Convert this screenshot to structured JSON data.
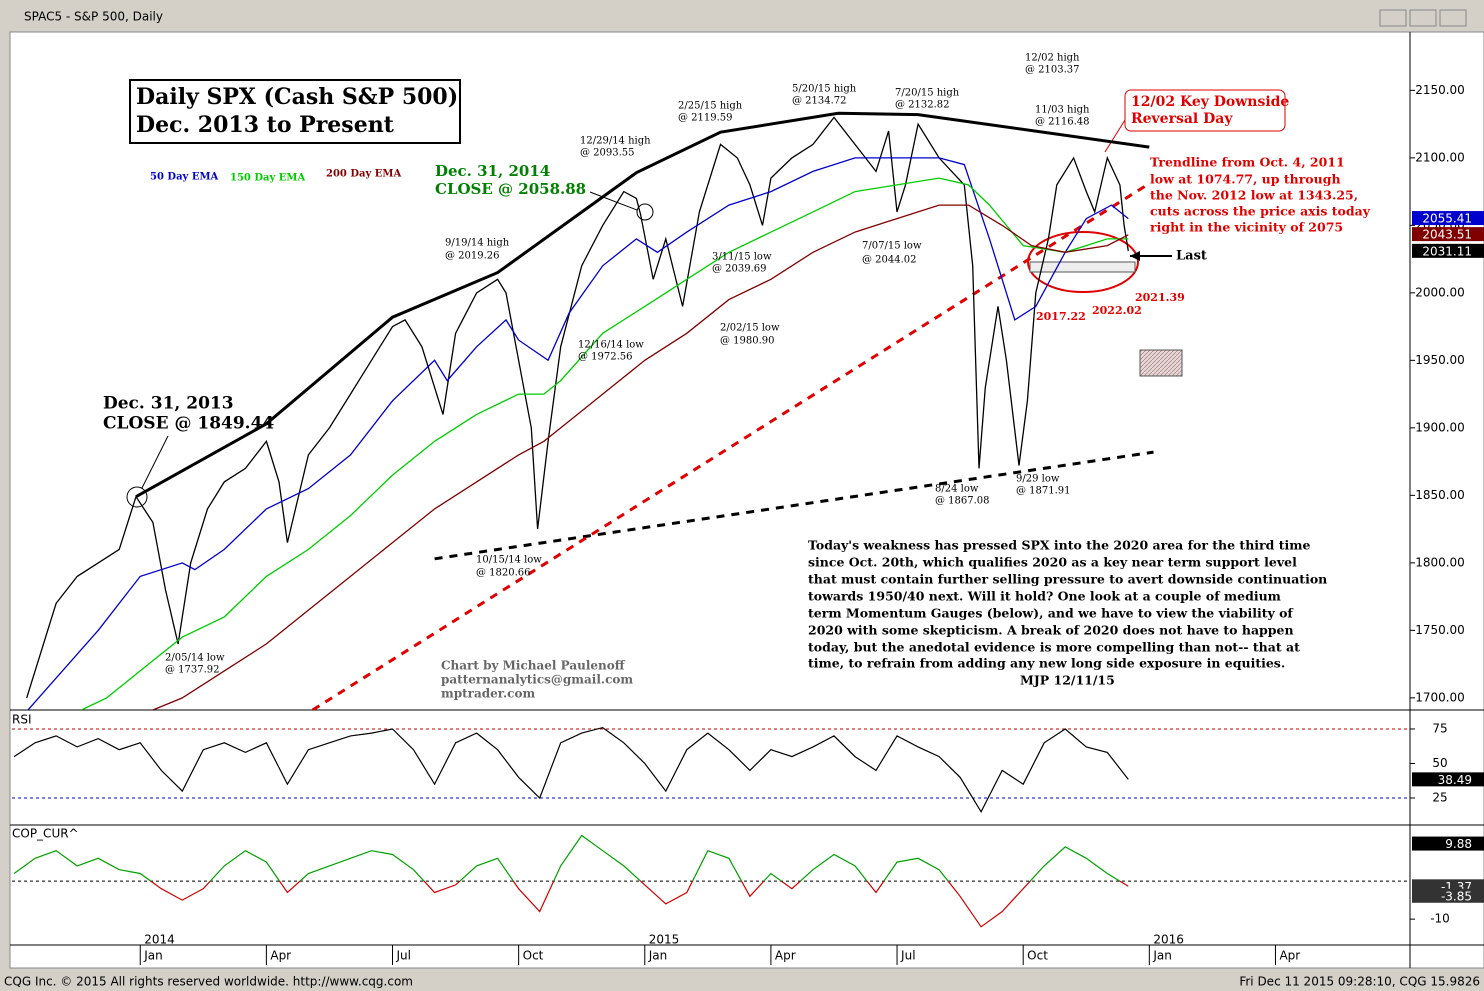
{
  "window": {
    "title": "SPAC5 - S&P 500, Daily",
    "footer_left": "CQG Inc. © 2015 All rights reserved worldwide. http://www.cqg.com",
    "footer_right": "Fri Dec 11 2015 09:28:10, CQG 15.9826"
  },
  "chart_data": [
    {
      "type": "line",
      "title_lines": [
        "Daily SPX (Cash S&P 500)",
        "Dec. 2013 to Present"
      ],
      "xlim": [
        -3.05,
        30.2
      ],
      "ylim": [
        1691,
        2191
      ],
      "yticks": [
        {
          "value": 1700,
          "label": "1700.00"
        },
        {
          "value": 1750,
          "label": "1750.00"
        },
        {
          "value": 1800,
          "label": "1800.00"
        },
        {
          "value": 1850,
          "label": "1850.00"
        },
        {
          "value": 1900,
          "label": "1900.00"
        },
        {
          "value": 1950,
          "label": "1950.00"
        },
        {
          "value": 2000,
          "label": "2000.00"
        },
        {
          "value": 2050,
          "label": "2050.00"
        },
        {
          "value": 2100,
          "label": "2100.00"
        },
        {
          "value": 2150,
          "label": "2150.00"
        }
      ],
      "series": [
        {
          "name": "S&P 500",
          "color": "#000000",
          "x": [
            -2.7,
            -2.3,
            -2,
            -1.5,
            -1,
            -0.5,
            -0.1,
            0.3,
            0.6,
            0.9,
            1.2,
            1.6,
            2,
            2.5,
            3,
            3.3,
            3.5,
            4,
            4.5,
            5,
            5.5,
            6,
            6.3,
            6.7,
            7,
            7.2,
            7.5,
            8,
            8.5,
            8.7,
            9,
            9.3,
            9.45,
            9.7,
            10,
            10.5,
            11,
            11.5,
            11.8,
            11.9,
            12.2,
            12.5,
            12.9,
            13.3,
            13.8,
            14.2,
            14.5,
            14.8,
            15,
            15.5,
            16,
            16.5,
            17,
            17.5,
            17.8,
            18,
            18.2,
            18.5,
            19,
            19.3,
            19.6,
            19.8,
            19.95,
            20.1,
            20.4,
            20.6,
            20.9,
            21.1,
            21.3,
            21.6,
            21.8,
            22.2,
            22.5,
            22.7,
            23,
            23.3,
            23.4,
            23.5
          ],
          "values": [
            1700,
            1740,
            1770,
            1790,
            1800,
            1810,
            1849,
            1830,
            1780,
            1740,
            1800,
            1840,
            1860,
            1870,
            1890,
            1860,
            1815,
            1880,
            1900,
            1925,
            1950,
            1975,
            1980,
            1960,
            1930,
            1910,
            1970,
            2000,
            2010,
            2000,
            1950,
            1900,
            1825,
            1890,
            1960,
            2020,
            2050,
            2075,
            2070,
            2058,
            2010,
            2040,
            1990,
            2060,
            2110,
            2100,
            2080,
            2050,
            2085,
            2100,
            2110,
            2130,
            2110,
            2090,
            2120,
            2060,
            2080,
            2125,
            2100,
            2090,
            2080,
            2020,
            1870,
            1930,
            1990,
            1950,
            1872,
            1920,
            2000,
            2040,
            2080,
            2100,
            2075,
            2060,
            2100,
            2080,
            2050,
            2031
          ]
        },
        {
          "name": "50 Day EMA",
          "color": "#0000cc",
          "x": [
            -2.7,
            -1,
            0,
            1,
            1.3,
            2,
            3,
            4,
            5,
            6,
            7,
            7.3,
            8,
            8.7,
            9,
            9.7,
            10.2,
            11,
            11.8,
            12.3,
            13,
            14,
            15,
            16,
            17,
            18,
            19,
            19.6,
            20.2,
            20.8,
            21.3,
            22,
            22.5,
            23.1,
            23.5
          ],
          "values": [
            1690,
            1750,
            1790,
            1800,
            1795,
            1810,
            1840,
            1855,
            1880,
            1920,
            1950,
            1935,
            1960,
            1980,
            1965,
            1950,
            1985,
            2020,
            2040,
            2030,
            2045,
            2065,
            2075,
            2090,
            2100,
            2100,
            2100,
            2095,
            2040,
            1980,
            1990,
            2030,
            2055,
            2065,
            2055
          ]
        },
        {
          "name": "150 Day EMA",
          "color": "#00cc00",
          "x": [
            -1.4,
            -0.8,
            0,
            1,
            2,
            3,
            4,
            5,
            6,
            7,
            8,
            9,
            9.6,
            10,
            11,
            12,
            13,
            14,
            15,
            16,
            17,
            18,
            19,
            19.7,
            20.2,
            21,
            22,
            23,
            23.5
          ],
          "values": [
            1691,
            1700,
            1720,
            1745,
            1760,
            1790,
            1810,
            1835,
            1865,
            1890,
            1910,
            1925,
            1925,
            1935,
            1970,
            1990,
            2010,
            2030,
            2045,
            2060,
            2075,
            2080,
            2085,
            2080,
            2065,
            2035,
            2030,
            2040,
            2040
          ]
        },
        {
          "name": "200 Day EMA",
          "color": "#800000",
          "x": [
            0.3,
            1,
            2,
            3,
            4,
            5,
            6,
            7,
            8,
            9,
            9.6,
            10,
            11,
            12,
            13,
            14,
            15,
            16,
            17,
            18,
            19,
            19.7,
            20.5,
            21.2,
            22,
            23,
            23.5
          ],
          "values": [
            1691,
            1700,
            1720,
            1740,
            1765,
            1790,
            1815,
            1840,
            1860,
            1880,
            1890,
            1900,
            1925,
            1950,
            1970,
            1995,
            2010,
            2030,
            2045,
            2055,
            2065,
            2065,
            2050,
            2035,
            2030,
            2035,
            2043
          ]
        }
      ],
      "trendlines": [
        {
          "color": "#000000",
          "dash": false,
          "x": [
            -0.1,
            3,
            6,
            8.5,
            11.8,
            13.8,
            16.6,
            18.5,
            24
          ],
          "values": [
            1849,
            1903,
            1982,
            2015,
            2089,
            2119,
            2133,
            2132,
            2108
          ]
        },
        {
          "color": "#000000",
          "dash": true,
          "x": [
            7,
            24.1
          ],
          "values": [
            1803,
            1882
          ]
        },
        {
          "color": "#e00000",
          "dash": true,
          "x": [
            4.1,
            24
          ],
          "values": [
            1691,
            2081
          ]
        }
      ],
      "flags": [
        {
          "value": 2055.41,
          "color": "#0000cc"
        },
        {
          "value": 2043.51,
          "color": "#800000"
        },
        {
          "value": 2031.11,
          "color": "#000000"
        }
      ],
      "annotations": [
        "12/02 high",
        "@ 2103.37",
        "5/20/15 high",
        "@ 2134.72",
        "7/20/15 high",
        "@ 2132.82",
        "11/03 high",
        "@ 2116.48",
        "2/25/15 high",
        "@ 2119.59",
        "12/29/14 high",
        "@ 2093.55",
        "9/19/14 high",
        "@ 2019.26",
        "3/11/15 low",
        "@ 2039.69",
        "7/07/15 low",
        "@ 2044.02",
        "2/02/15 low",
        "@ 1980.90",
        "12/16/14 low",
        "@ 1972.56",
        "10/15/14 low",
        "@ 1820.66",
        "2/05/14 low",
        "@ 1737.92",
        "8/24 low",
        "@ 1867.08",
        "9/29 low",
        "@ 1871.91",
        "2017.22",
        "2022.02",
        "2021.39",
        "Last",
        "Dec. 31, 2013",
        "CLOSE @ 1849.44",
        "Dec. 31, 2014",
        "CLOSE @ 2058.88",
        "12/02 Key Downside",
        "Reversal Day",
        "Trendline from Oct. 4, 2011",
        "low at 1074.77, up through",
        "the Nov. 2012 low at 1343.25,",
        "cuts across the price axis today",
        "right in the vicinity of 2075",
        "Today's weakness has pressed SPX into the 2020 area for the third time",
        "since Oct. 20th, which qualifies 2020 as a key near term support level",
        "that must contain further selling pressure to avert downside continuation",
        "towards 1950/40 next. Will it hold? One look at a couple of medium",
        "term Momentum Gauges (below), and we have to view the viability of",
        "2020 with some skepticism. A break of 2020 does not have to happen",
        "today, but the anedotal evidence is more compelling than not-- that at",
        "time, to refrain from adding any new long side exposure in equities.",
        "MJP 12/11/15",
        "Chart by Michael Paulenoff",
        "patternanalytics@gmail.com",
        "mptrader.com"
      ]
    },
    {
      "type": "line",
      "title": "RSI",
      "xlim": [
        -3.05,
        30.2
      ],
      "ylim": [
        7.6,
        87.3
      ],
      "yticks": [
        25,
        50,
        75
      ],
      "ref_lines": [
        {
          "value": 75,
          "color": "#c00000"
        },
        {
          "value": 25,
          "color": "#0000cc"
        }
      ],
      "series": [
        {
          "name": "RSI",
          "color": "#000000",
          "x": [
            -3,
            -2.5,
            -2,
            -1.5,
            -1,
            -0.5,
            0,
            0.5,
            1,
            1.5,
            2,
            2.5,
            3,
            3.5,
            4,
            4.5,
            5,
            5.5,
            6,
            6.5,
            7,
            7.5,
            8,
            8.5,
            9,
            9.5,
            10,
            10.5,
            11,
            11.5,
            12,
            12.5,
            13,
            13.5,
            14,
            14.5,
            15,
            15.5,
            16,
            16.5,
            17,
            17.5,
            18,
            18.5,
            19,
            19.5,
            20,
            20.5,
            21,
            21.5,
            22,
            22.5,
            23,
            23.5
          ],
          "values": [
            55,
            65,
            70,
            62,
            68,
            60,
            65,
            45,
            30,
            60,
            65,
            58,
            65,
            35,
            60,
            65,
            70,
            72,
            75,
            60,
            35,
            65,
            72,
            60,
            40,
            25,
            65,
            72,
            76,
            65,
            50,
            30,
            60,
            72,
            60,
            45,
            60,
            55,
            62,
            70,
            55,
            45,
            70,
            62,
            55,
            40,
            15,
            45,
            35,
            65,
            75,
            62,
            58,
            38.49
          ]
        }
      ],
      "flags": [
        {
          "value": 38.49,
          "color": "#000000"
        }
      ]
    },
    {
      "type": "line",
      "title": "COP_CUR^",
      "xlim": [
        -3.05,
        30.2
      ],
      "ylim": [
        -16.8,
        14.5
      ],
      "yticks": [
        -10
      ],
      "ref_lines": [
        {
          "value": 0,
          "color": "#000000"
        }
      ],
      "xticks": [
        {
          "value": 0,
          "label": "Jan"
        },
        {
          "value": 3,
          "label": "Apr"
        },
        {
          "value": 6,
          "label": "Jul"
        },
        {
          "value": 9,
          "label": "Oct"
        },
        {
          "value": 12,
          "label": "Jan"
        },
        {
          "value": 15,
          "label": "Apr"
        },
        {
          "value": 18,
          "label": "Jul"
        },
        {
          "value": 21,
          "label": "Oct"
        },
        {
          "value": 24,
          "label": "Jan"
        },
        {
          "value": 27,
          "label": "Apr"
        }
      ],
      "year_ticks": [
        {
          "value": 0,
          "label": "2014"
        },
        {
          "value": 12,
          "label": "2015"
        },
        {
          "value": 24,
          "label": "2016"
        }
      ],
      "series": [
        {
          "name": "COP_CUR",
          "color": "#00a000",
          "negative_color": "#d00000",
          "x": [
            -3,
            -2.5,
            -2,
            -1.5,
            -1,
            -0.5,
            0,
            0.5,
            1,
            1.5,
            2,
            2.5,
            3,
            3.5,
            4,
            4.5,
            5,
            5.5,
            6,
            6.5,
            7,
            7.5,
            8,
            8.5,
            9,
            9.5,
            10,
            10.5,
            11,
            11.5,
            12,
            12.5,
            13,
            13.5,
            14,
            14.5,
            15,
            15.5,
            16,
            16.5,
            17,
            17.5,
            18,
            18.5,
            19,
            19.5,
            20,
            20.5,
            21,
            21.5,
            22,
            22.5,
            23,
            23.5
          ],
          "values": [
            2,
            6,
            8,
            4,
            6,
            3,
            2,
            -2,
            -5,
            -2,
            4,
            8,
            5,
            -3,
            2,
            4,
            6,
            8,
            7,
            3,
            -3,
            -1,
            4,
            6,
            -2,
            -8,
            4,
            12,
            8,
            4,
            -1,
            -6,
            -3,
            8,
            6,
            -4,
            2,
            -2,
            3,
            7,
            4,
            -3,
            5,
            6,
            3,
            -4,
            -12,
            -8,
            -2,
            4,
            9,
            6,
            2,
            -1.37
          ]
        }
      ],
      "flags": [
        {
          "value": 9.88,
          "color": "#000000"
        },
        {
          "value": -1.37,
          "color": "#333333"
        },
        {
          "value": -3.85,
          "color": "#333333"
        }
      ]
    }
  ]
}
